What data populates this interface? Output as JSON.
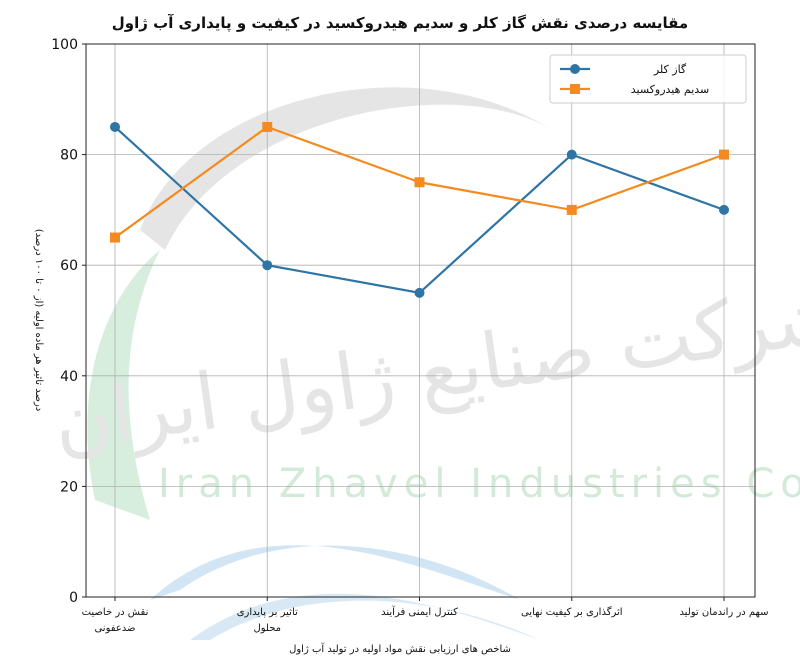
{
  "chart_data": {
    "type": "line",
    "title": "مقایسه درصدی نقش گاز کلر و سدیم هیدروکسید در کیفیت و پایداری آب ژاول",
    "xlabel": "شاخص های ارزیابی نقش مواد اولیه در تولید آب ژاول",
    "ylabel": "درصد تاثیر هر ماده اولیه (از ۰ تا ۱۰۰ درصد)",
    "categories": [
      [
        "نقش در خاصیت",
        "ضدعفونی"
      ],
      [
        "تاثیر بر پایداری",
        "محلول"
      ],
      [
        "کنترل ایمنی فرآیند"
      ],
      [
        "اثرگذاری بر کیفیت نهایی"
      ],
      [
        "سهم در راندمان تولید"
      ]
    ],
    "series": [
      {
        "name": "گاز کلر",
        "values": [
          85,
          60,
          55,
          80,
          70
        ],
        "color": "#2e75a6",
        "marker": "circle"
      },
      {
        "name": "سدیم هیدروکسید",
        "values": [
          65,
          85,
          75,
          70,
          80
        ],
        "color": "#f58a1f",
        "marker": "square"
      }
    ],
    "ylim": [
      0,
      100
    ],
    "yticks": [
      0,
      20,
      40,
      60,
      80,
      100
    ],
    "grid": true,
    "legend_position": "top-right"
  },
  "watermark": {
    "latin_text": "Iran Zhavel Industries Co",
    "persian_text": "شرکت صنایع ژاول ایران"
  }
}
